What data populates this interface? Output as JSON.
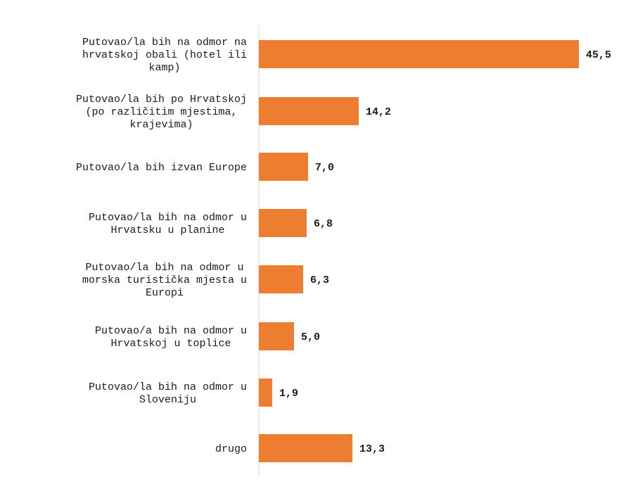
{
  "chart_data": {
    "type": "bar",
    "orientation": "horizontal",
    "categories": [
      "Putovao/la bih na odmor na hrvatskoj obali (hotel ili kamp)",
      "Putovao/la bih po Hrvatskoj (po različitim mjestima, krajevima)",
      "Putovao/la bih izvan Europe",
      "Putovao/la bih na odmor u Hrvatsku u planine",
      "Putovao/la bih na odmor u morska turistička mjesta u Europi",
      "Putovao/a bih na odmor u Hrvatskoj u toplice",
      "Putovao/la bih na odmor u Sloveniju",
      "drugo"
    ],
    "category_lines": [
      [
        "Putovao/la bih na odmor na",
        "hrvatskoj obali (hotel ili",
        "kamp)"
      ],
      [
        "Putovao/la bih po Hrvatskoj",
        "(po različitim mjestima,",
        "krajevima)"
      ],
      [
        "Putovao/la bih izvan Europe"
      ],
      [
        "Putovao/la bih na odmor u",
        "Hrvatsku u planine"
      ],
      [
        "Putovao/la bih na odmor u",
        "morska turistička mjesta u",
        "Europi"
      ],
      [
        "Putovao/a bih na odmor u",
        "Hrvatskoj u toplice"
      ],
      [
        "Putovao/la bih na odmor u",
        "Sloveniju"
      ],
      [
        "drugo"
      ]
    ],
    "values": [
      45.5,
      14.2,
      7.0,
      6.8,
      6.3,
      5.0,
      1.9,
      13.3
    ],
    "value_labels": [
      "45,5",
      "14,2",
      "7,0",
      "6,8",
      "6,3",
      "5,0",
      "1,9",
      "13,3"
    ],
    "xlim": [
      0,
      50
    ],
    "grid": false,
    "legend": "none",
    "bar_color": "#ED7D31",
    "axis_color": "#d9d9d9"
  }
}
